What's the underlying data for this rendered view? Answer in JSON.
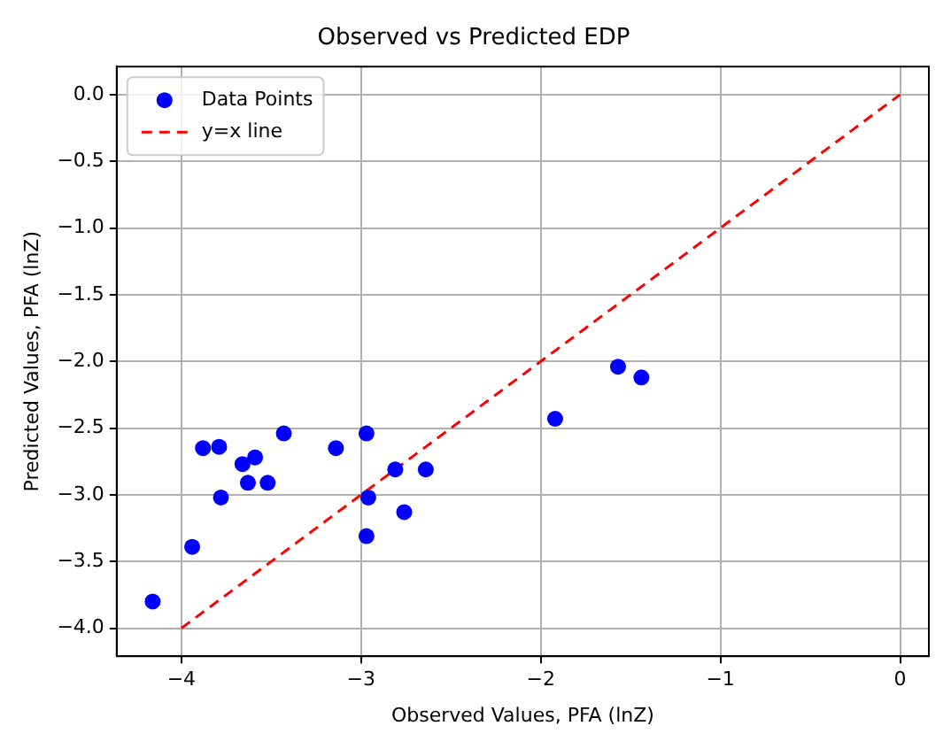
{
  "chart_data": {
    "type": "scatter",
    "title": "Observed vs Predicted EDP",
    "xlabel": "Observed Values, PFA (lnZ)",
    "ylabel": "Predicted Values, PFA (lnZ)",
    "series": [
      {
        "name": "Data Points",
        "color": "#0000ff",
        "marker": "circle",
        "x": [
          -4.16,
          -3.94,
          -3.88,
          -3.79,
          -3.78,
          -3.66,
          -3.63,
          -3.59,
          -3.52,
          -3.43,
          -3.14,
          -2.97,
          -2.96,
          -2.97,
          -2.81,
          -2.76,
          -2.64,
          -1.92,
          -1.57,
          -1.44
        ],
        "values": [
          -3.8,
          -3.39,
          -2.65,
          -2.64,
          -3.02,
          -2.77,
          -2.91,
          -2.72,
          -2.91,
          -2.54,
          -2.65,
          -2.54,
          -3.02,
          -3.31,
          -2.81,
          -3.13,
          -2.81,
          -2.43,
          -2.04,
          -2.12
        ]
      },
      {
        "name": "y=x line",
        "type": "line",
        "color": "#ff0000",
        "line_style": "dashed",
        "marker": "none",
        "x": [
          -4,
          0
        ],
        "values": [
          -4,
          0
        ]
      }
    ],
    "xlim": [
      -4.36,
      0.16
    ],
    "ylim": [
      -4.21,
      0.21
    ],
    "xticks": [
      {
        "value": -4,
        "label": "−4"
      },
      {
        "value": -3,
        "label": "−3"
      },
      {
        "value": -2,
        "label": "−2"
      },
      {
        "value": -1,
        "label": "−1"
      },
      0
    ],
    "yticks": [
      {
        "value": -4,
        "label": "−4.0"
      },
      {
        "value": -3.5,
        "label": "−3.5"
      },
      {
        "value": -3,
        "label": "−3.0"
      },
      {
        "value": -2.5,
        "label": "−2.5"
      },
      {
        "value": -2,
        "label": "−2.0"
      },
      {
        "value": -1.5,
        "label": "−1.5"
      },
      {
        "value": -1,
        "label": "−1.0"
      },
      {
        "value": -0.5,
        "label": "−0.5"
      },
      {
        "value": 0,
        "label": "0.0"
      }
    ],
    "grid": true,
    "legend": "top left"
  }
}
